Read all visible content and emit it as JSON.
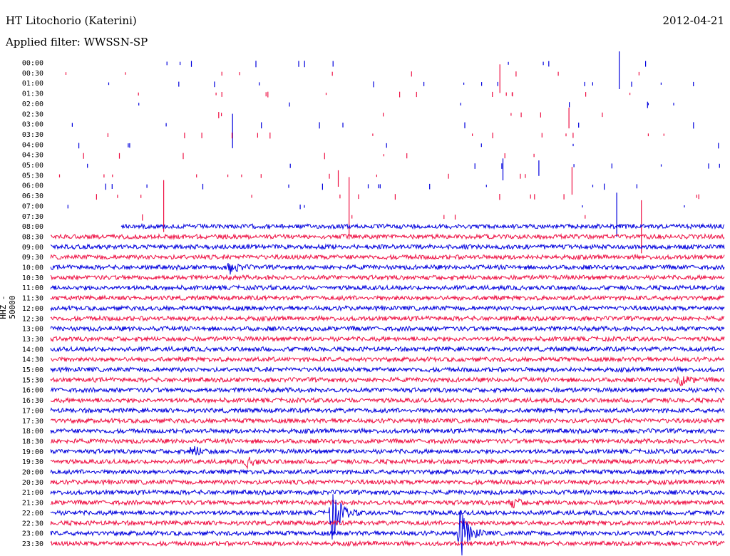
{
  "header": {
    "station": "HT Litochorio (Katerini)",
    "filter": "Applied filter: WWSSN-SP",
    "date": "2012-04-21",
    "channel_label": "HHZ - 50000"
  },
  "chart_data": {
    "type": "line",
    "title": "HT Litochorio (Katerini)",
    "subtitle": "Applied filter: WWSSN-SP",
    "date": "2012-04-21",
    "ylabel": "HHZ - 50000",
    "xlabel": "",
    "row_labels": [
      "00:00",
      "00:30",
      "01:00",
      "01:30",
      "02:00",
      "02:30",
      "03:00",
      "03:30",
      "04:00",
      "04:30",
      "05:00",
      "05:30",
      "06:00",
      "06:30",
      "07:00",
      "07:30",
      "08:00",
      "08:30",
      "09:00",
      "09:30",
      "10:00",
      "10:30",
      "11:00",
      "11:30",
      "12:00",
      "12:30",
      "13:00",
      "13:30",
      "14:00",
      "14:30",
      "15:00",
      "15:30",
      "16:00",
      "16:30",
      "17:00",
      "17:30",
      "18:00",
      "18:30",
      "19:00",
      "19:30",
      "20:00",
      "20:30",
      "21:00",
      "21:30",
      "22:00",
      "22:30",
      "23:00",
      "23:30"
    ],
    "colors": [
      "#0000dd",
      "#ee1144"
    ],
    "data_gap_rows": 16,
    "continuous_from_row": 16,
    "events": [
      {
        "row": 20,
        "minute": 8.0,
        "amp": 8
      },
      {
        "row": 31,
        "minute": 28.0,
        "amp": 8
      },
      {
        "row": 38,
        "minute": 6.3,
        "amp": 9
      },
      {
        "row": 39,
        "minute": 8.7,
        "amp": 8
      },
      {
        "row": 43,
        "minute": 20.5,
        "amp": 7
      },
      {
        "row": 44,
        "minute": 12.5,
        "amp": 40
      },
      {
        "row": 46,
        "minute": 18.2,
        "amp": 42
      }
    ]
  }
}
